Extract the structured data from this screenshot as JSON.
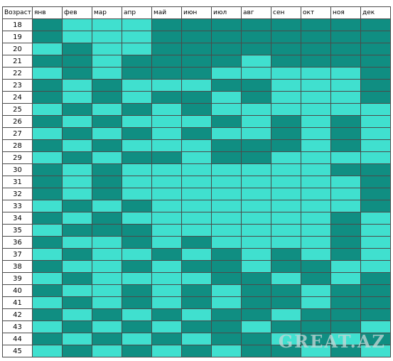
{
  "header": {
    "age_label": "Возраст",
    "months": [
      "янв",
      "фев",
      "мар",
      "апр",
      "май",
      "июн",
      "июл",
      "авг",
      "сен",
      "окт",
      "ноя",
      "дек"
    ]
  },
  "colors": {
    "dark": "#108e82",
    "light": "#40e0cf"
  },
  "legend_codes": {
    "D": "dark",
    "L": "light"
  },
  "rows": [
    {
      "age": "18",
      "cells": "DLLLDDDDDDDD"
    },
    {
      "age": "19",
      "cells": "DLLLDDDDDDDD"
    },
    {
      "age": "20",
      "cells": "LDLLDDDDDDDD"
    },
    {
      "age": "21",
      "cells": "DDLDDDDLDDDD"
    },
    {
      "age": "22",
      "cells": "LDLDDDLLLLLD"
    },
    {
      "age": "23",
      "cells": "DLDLLLDDLLLD"
    },
    {
      "age": "24",
      "cells": "DLDLDDLDLLLD"
    },
    {
      "age": "25",
      "cells": "LDLDLDLLLLLL"
    },
    {
      "age": "26",
      "cells": "DLDLLLDLDLDL"
    },
    {
      "age": "27",
      "cells": "LDLDLDLLDLDL"
    },
    {
      "age": "28",
      "cells": "DLDLLLDDDLDL"
    },
    {
      "age": "29",
      "cells": "LDLDDLDDLLLL"
    },
    {
      "age": "30",
      "cells": "DLDLLLLLLLDD"
    },
    {
      "age": "31",
      "cells": "DLDLLLLLLLLD"
    },
    {
      "age": "32",
      "cells": "DLDLLLLLLLLD"
    },
    {
      "age": "33",
      "cells": "LDLDLLLLLLLD"
    },
    {
      "age": "34",
      "cells": "DLDLLLLLLLDL"
    },
    {
      "age": "35",
      "cells": "LDDDLLLLLLDL"
    },
    {
      "age": "36",
      "cells": "DLLDLDLLLLDL"
    },
    {
      "age": "37",
      "cells": "LDLLDLDLDLDL"
    },
    {
      "age": "38",
      "cells": "DLLDLDDLDDLL"
    },
    {
      "age": "39",
      "cells": "LDLLLLDDLDLD"
    },
    {
      "age": "40",
      "cells": "DLLDLDLDDLDD"
    },
    {
      "age": "41",
      "cells": "LDLDLDLDDLDD"
    },
    {
      "age": "42",
      "cells": "DLDLDLDDLDDD"
    },
    {
      "age": "43",
      "cells": "LDLDLDDLDDDL"
    },
    {
      "age": "44",
      "cells": "DLDLDLDDLDLD"
    },
    {
      "age": "45",
      "cells": "LDLDLDLDDLDL"
    }
  ],
  "watermark": {
    "text": "GREAT.AZ"
  }
}
